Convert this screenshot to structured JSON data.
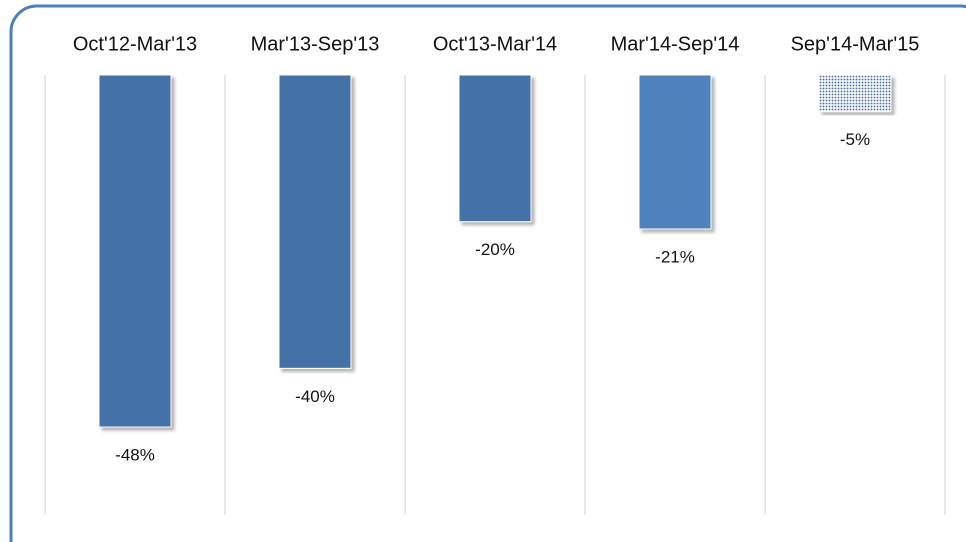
{
  "chart_data": {
    "type": "bar",
    "categories": [
      "Oct'12-Mar'13",
      "Mar'13-Sep'13",
      "Oct'13-Mar'14",
      "Mar'14-Sep'14",
      "Sep'14-Mar'15"
    ],
    "values": [
      -48,
      -40,
      -20,
      -21,
      -5
    ],
    "value_labels": [
      "-48%",
      "-40%",
      "-20%",
      "-21%",
      "-5%"
    ],
    "colors": [
      "#4472a6",
      "#4472a6",
      "#4472a6",
      "#4f81bd",
      "#4a6f99"
    ],
    "fill_styles": [
      "solid",
      "solid",
      "solid",
      "solid",
      "dotted"
    ],
    "ylim": [
      -60,
      0
    ]
  }
}
